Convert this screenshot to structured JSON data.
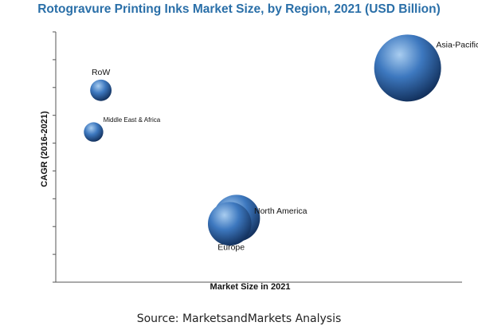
{
  "header": {
    "title": "Rotogravure Printing Inks Market Size, by Region, 2021 (USD Billion)"
  },
  "footer": {
    "source": "Source: MarketsandMarkets Analysis"
  },
  "chart_data": {
    "type": "scatter",
    "title": "Rotogravure Printing Inks Market Size, by Region, 2021 (USD Billion)",
    "xlabel": "Market Size in 2021",
    "ylabel": "CAGR (2016-2021)",
    "xlim": [
      0,
      10
    ],
    "ylim": [
      0,
      9
    ],
    "grid": false,
    "series": [
      {
        "points": [
          {
            "label": "Asia-Pacific",
            "x": 8.66,
            "y": 7.7,
            "size": 1.0
          },
          {
            "label": "RoW",
            "x": 1.11,
            "y": 6.9,
            "size": 0.32
          },
          {
            "label": "Middle East & Africa",
            "x": 0.93,
            "y": 5.4,
            "size": 0.29
          },
          {
            "label": "North America",
            "x": 4.45,
            "y": 2.3,
            "size": 0.7
          },
          {
            "label": "Europe",
            "x": 4.28,
            "y": 2.1,
            "size": 0.65
          }
        ]
      }
    ]
  },
  "colors": {
    "title": "#2a6fa8",
    "bubble_light": "#a9cdf0",
    "bubble_mid": "#3d78bf",
    "bubble_dark": "#0f2b55",
    "axis": "#555555"
  }
}
